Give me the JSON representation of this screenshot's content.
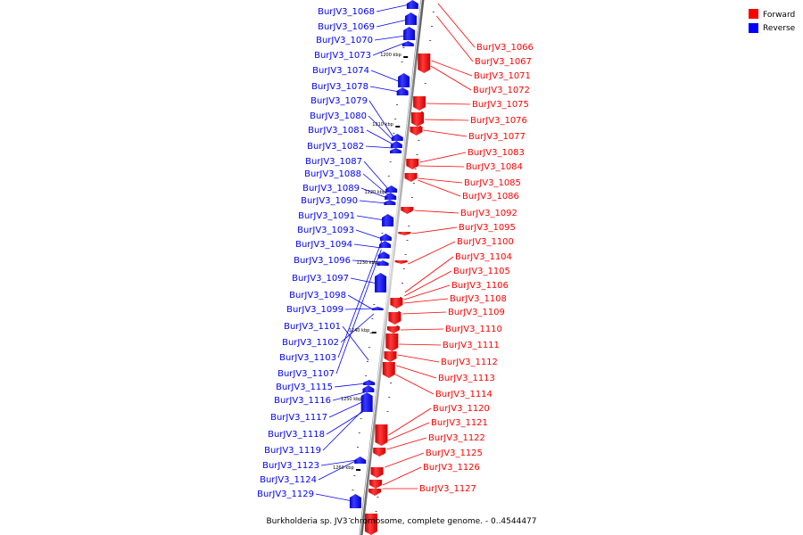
{
  "legend": {
    "forward_label": "Forward",
    "reverse_label": "Reverse",
    "forward_color": "#ff0000",
    "reverse_color": "#0000ff"
  },
  "caption": "Burkholderia sp. JV3 chromosome, complete genome. - 0..4544477",
  "kbp_marks": [
    "1200 kbp",
    "1210 kbp",
    "1220 kbp",
    "1230 kbp",
    "1240 kbp",
    "1250 kbp",
    "1260 kbp"
  ],
  "reverse_genes": [
    "BurJV3_1068",
    "BurJV3_1069",
    "BurJV3_1070",
    "BurJV3_1073",
    "BurJV3_1074",
    "BurJV3_1078",
    "BurJV3_1079",
    "BurJV3_1080",
    "BurJV3_1081",
    "BurJV3_1082",
    "BurJV3_1087",
    "BurJV3_1088",
    "BurJV3_1089",
    "BurJV3_1090",
    "BurJV3_1091",
    "BurJV3_1093",
    "BurJV3_1094",
    "BurJV3_1096",
    "BurJV3_1097",
    "BurJV3_1098",
    "BurJV3_1099",
    "BurJV3_1101",
    "BurJV3_1102",
    "BurJV3_1103",
    "BurJV3_1107",
    "BurJV3_1115",
    "BurJV3_1116",
    "BurJV3_1117",
    "BurJV3_1118",
    "BurJV3_1119",
    "BurJV3_1123",
    "BurJV3_1124",
    "BurJV3_1129"
  ],
  "forward_genes": [
    "BurJV3_1066",
    "BurJV3_1067",
    "BurJV3_1071",
    "BurJV3_1072",
    "BurJV3_1075",
    "BurJV3_1076",
    "BurJV3_1077",
    "BurJV3_1083",
    "BurJV3_1084",
    "BurJV3_1085",
    "BurJV3_1086",
    "BurJV3_1092",
    "BurJV3_1095",
    "BurJV3_1100",
    "BurJV3_1104",
    "BurJV3_1105",
    "BurJV3_1106",
    "BurJV3_1108",
    "BurJV3_1109",
    "BurJV3_1110",
    "BurJV3_1111",
    "BurJV3_1112",
    "BurJV3_1113",
    "BurJV3_1114",
    "BurJV3_1120",
    "BurJV3_1121",
    "BurJV3_1122",
    "BurJV3_1125",
    "BurJV3_1126",
    "BurJV3_1127"
  ]
}
